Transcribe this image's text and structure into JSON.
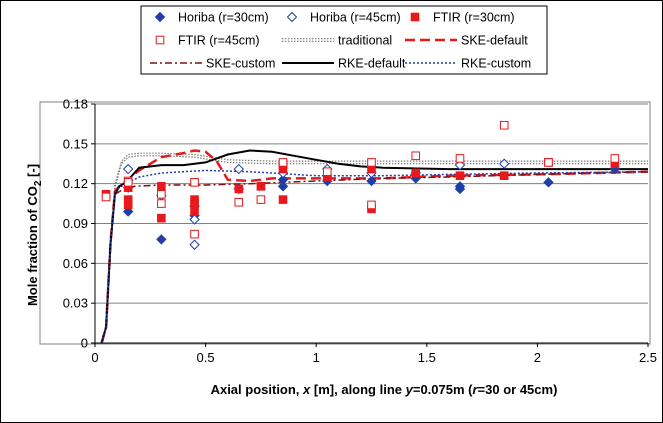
{
  "chart_data": {
    "type": "scatter",
    "xlim": [
      0,
      2.5
    ],
    "ylim": [
      0,
      0.18
    ],
    "x_ticks": [
      "0",
      "0.5",
      "1",
      "1.5",
      "2",
      "2.5"
    ],
    "y_ticks": [
      "0",
      "0.03",
      "0.06",
      "0.09",
      "0.12",
      "0.15",
      "0.18"
    ],
    "xlabel": {
      "t1": "Axial position, ",
      "t2": "x",
      "t3": " [m], along line ",
      "t4": "y",
      "t5": "=0.075m (",
      "t6": "r",
      "t7": "=30 or 45cm)"
    },
    "ylabel": {
      "t1": "Mole fraction of CO",
      "sub": "2",
      "t2": " [-]"
    },
    "grid": "horizontal",
    "legend_position": "top",
    "series": [
      {
        "name": "Horiba (r=30cm)",
        "marker": "diamond-filled",
        "color": "#1f3fa8",
        "points": [
          [
            0.15,
            0.117
          ],
          [
            0.15,
            0.099
          ],
          [
            0.3,
            0.078
          ],
          [
            0.45,
            0.096
          ],
          [
            0.45,
            0.103
          ],
          [
            0.65,
            0.116
          ],
          [
            0.85,
            0.118
          ],
          [
            0.85,
            0.123
          ],
          [
            1.05,
            0.122
          ],
          [
            1.25,
            0.122
          ],
          [
            1.45,
            0.124
          ],
          [
            1.65,
            0.116
          ],
          [
            1.65,
            0.118
          ],
          [
            2.05,
            0.121
          ],
          [
            2.35,
            0.131
          ]
        ]
      },
      {
        "name": "Horiba (r=45cm)",
        "marker": "diamond-open",
        "color": "#1f3fa8",
        "points": [
          [
            0.15,
            0.131
          ],
          [
            0.3,
            0.111
          ],
          [
            0.45,
            0.093
          ],
          [
            0.45,
            0.074
          ],
          [
            0.65,
            0.131
          ],
          [
            0.85,
            0.128
          ],
          [
            1.05,
            0.131
          ],
          [
            1.25,
            0.128
          ],
          [
            1.45,
            0.128
          ],
          [
            1.65,
            0.134
          ],
          [
            1.85,
            0.135
          ]
        ]
      },
      {
        "name": "FTIR (r=30cm)",
        "marker": "square-filled",
        "color": "#e8181c",
        "points": [
          [
            0.05,
            0.112
          ],
          [
            0.15,
            0.117
          ],
          [
            0.15,
            0.108
          ],
          [
            0.15,
            0.104
          ],
          [
            0.3,
            0.094
          ],
          [
            0.3,
            0.118
          ],
          [
            0.45,
            0.108
          ],
          [
            0.45,
            0.105
          ],
          [
            0.45,
            0.099
          ],
          [
            0.65,
            0.116
          ],
          [
            0.75,
            0.118
          ],
          [
            0.85,
            0.108
          ],
          [
            0.85,
            0.134
          ],
          [
            0.85,
            0.131
          ],
          [
            1.05,
            0.125
          ],
          [
            1.25,
            0.131
          ],
          [
            1.25,
            0.101
          ],
          [
            1.45,
            0.128
          ],
          [
            1.65,
            0.126
          ],
          [
            1.85,
            0.126
          ],
          [
            2.05,
            0.136
          ],
          [
            2.35,
            0.135
          ]
        ]
      },
      {
        "name": "FTIR (r=45cm)",
        "marker": "square-open",
        "color": "#e8181c",
        "points": [
          [
            0.05,
            0.11
          ],
          [
            0.15,
            0.122
          ],
          [
            0.15,
            0.121
          ],
          [
            0.3,
            0.112
          ],
          [
            0.3,
            0.105
          ],
          [
            0.45,
            0.121
          ],
          [
            0.45,
            0.082
          ],
          [
            0.65,
            0.106
          ],
          [
            0.75,
            0.108
          ],
          [
            0.85,
            0.136
          ],
          [
            1.05,
            0.129
          ],
          [
            1.25,
            0.136
          ],
          [
            1.25,
            0.104
          ],
          [
            1.45,
            0.141
          ],
          [
            1.65,
            0.139
          ],
          [
            1.85,
            0.164
          ],
          [
            2.05,
            0.136
          ],
          [
            2.35,
            0.139
          ]
        ]
      },
      {
        "name": "traditional",
        "line": "dotted-double",
        "color": "#777777",
        "points": [
          [
            0.03,
            0
          ],
          [
            0.05,
            0.012
          ],
          [
            0.07,
            0.07
          ],
          [
            0.09,
            0.118
          ],
          [
            0.12,
            0.136
          ],
          [
            0.15,
            0.141
          ],
          [
            0.2,
            0.142
          ],
          [
            0.3,
            0.142
          ],
          [
            0.45,
            0.141
          ],
          [
            0.6,
            0.137
          ],
          [
            0.8,
            0.136
          ],
          [
            1.0,
            0.136
          ],
          [
            1.3,
            0.136
          ],
          [
            1.6,
            0.136
          ],
          [
            2.0,
            0.136
          ],
          [
            2.5,
            0.136
          ]
        ]
      },
      {
        "name": "SKE-default",
        "line": "dashed-thick",
        "color": "#e8181c",
        "points": [
          [
            0.03,
            0
          ],
          [
            0.05,
            0.012
          ],
          [
            0.07,
            0.075
          ],
          [
            0.09,
            0.114
          ],
          [
            0.11,
            0.118
          ],
          [
            0.14,
            0.122
          ],
          [
            0.2,
            0.13
          ],
          [
            0.3,
            0.14
          ],
          [
            0.4,
            0.143
          ],
          [
            0.45,
            0.145
          ],
          [
            0.5,
            0.144
          ],
          [
            0.55,
            0.137
          ],
          [
            0.6,
            0.123
          ],
          [
            0.7,
            0.122
          ],
          [
            0.8,
            0.124
          ],
          [
            1.0,
            0.124
          ],
          [
            1.3,
            0.124
          ],
          [
            1.6,
            0.126
          ],
          [
            2.0,
            0.127
          ],
          [
            2.5,
            0.129
          ]
        ]
      },
      {
        "name": "SKE-custom",
        "line": "dashdot",
        "color": "#7a1010",
        "points": [
          [
            0.03,
            0
          ],
          [
            0.05,
            0.012
          ],
          [
            0.07,
            0.075
          ],
          [
            0.09,
            0.112
          ],
          [
            0.12,
            0.115
          ],
          [
            0.18,
            0.118
          ],
          [
            0.3,
            0.119
          ],
          [
            0.5,
            0.119
          ],
          [
            0.7,
            0.12
          ],
          [
            1.0,
            0.122
          ],
          [
            1.3,
            0.124
          ],
          [
            1.6,
            0.125
          ],
          [
            2.0,
            0.127
          ],
          [
            2.5,
            0.129
          ]
        ]
      },
      {
        "name": "RKE-default",
        "line": "solid",
        "color": "#000000",
        "points": [
          [
            0.03,
            0
          ],
          [
            0.05,
            0.012
          ],
          [
            0.07,
            0.075
          ],
          [
            0.09,
            0.112
          ],
          [
            0.11,
            0.118
          ],
          [
            0.14,
            0.121
          ],
          [
            0.2,
            0.132
          ],
          [
            0.3,
            0.134
          ],
          [
            0.4,
            0.134
          ],
          [
            0.5,
            0.136
          ],
          [
            0.6,
            0.142
          ],
          [
            0.7,
            0.145
          ],
          [
            0.8,
            0.144
          ],
          [
            0.9,
            0.141
          ],
          [
            1.0,
            0.138
          ],
          [
            1.1,
            0.135
          ],
          [
            1.2,
            0.133
          ],
          [
            1.3,
            0.132
          ],
          [
            1.6,
            0.131
          ],
          [
            2.0,
            0.131
          ],
          [
            2.5,
            0.131
          ]
        ]
      },
      {
        "name": "RKE-custom",
        "line": "dotted",
        "color": "#1f3fa8",
        "points": [
          [
            0.03,
            0
          ],
          [
            0.05,
            0.012
          ],
          [
            0.07,
            0.075
          ],
          [
            0.09,
            0.114
          ],
          [
            0.12,
            0.118
          ],
          [
            0.2,
            0.125
          ],
          [
            0.3,
            0.128
          ],
          [
            0.4,
            0.129
          ],
          [
            0.5,
            0.13
          ],
          [
            0.7,
            0.129
          ],
          [
            1.0,
            0.126
          ],
          [
            1.3,
            0.126
          ],
          [
            1.6,
            0.127
          ],
          [
            2.0,
            0.128
          ],
          [
            2.5,
            0.129
          ]
        ]
      }
    ]
  }
}
